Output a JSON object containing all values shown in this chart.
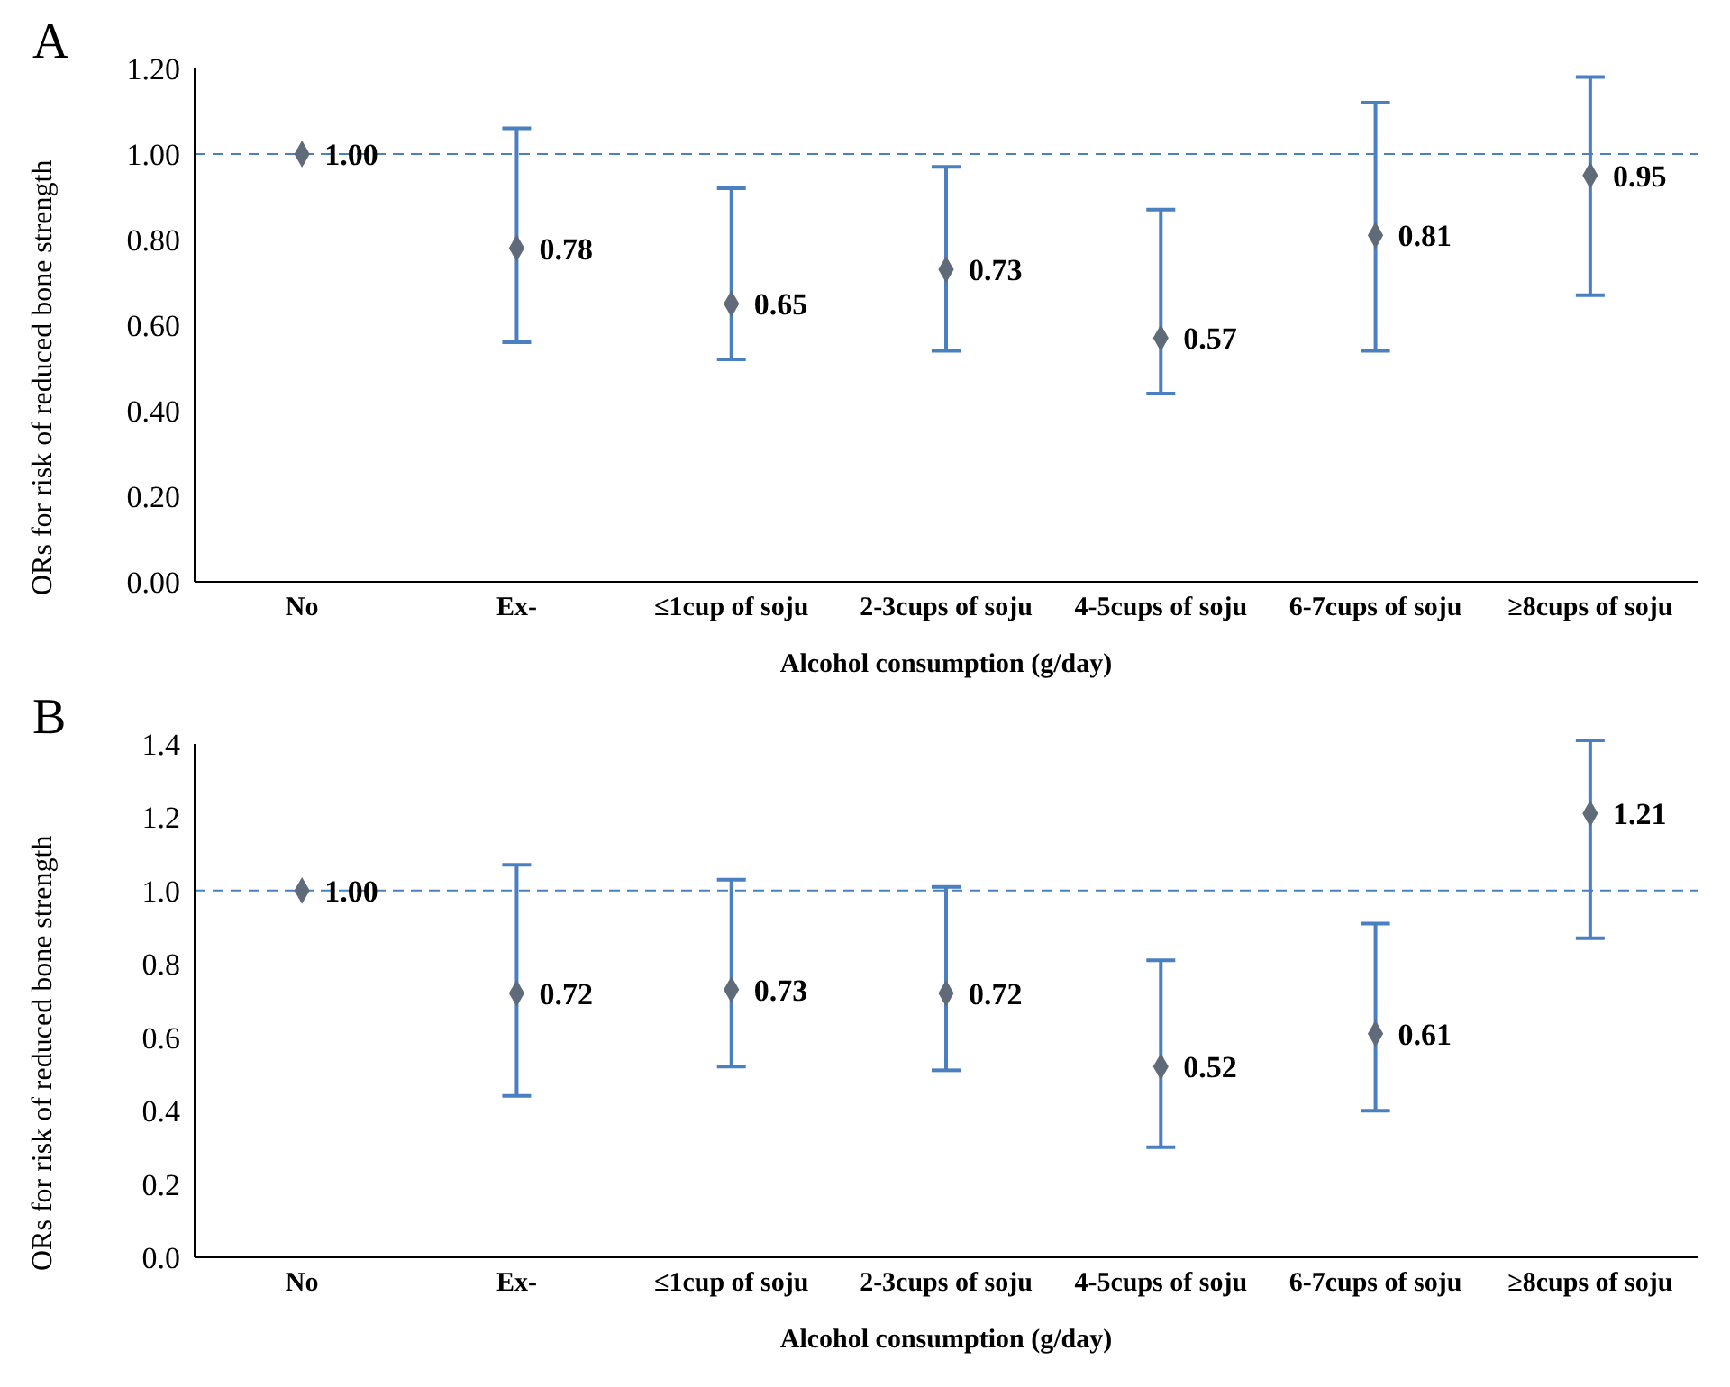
{
  "chart_data": [
    {
      "type": "scatter",
      "title": "A",
      "xlabel": "Alcohol consumption (g/day)",
      "ylabel": "ORs for risk of reduced bone strength",
      "categories": [
        "No",
        "Ex-",
        "≤1cup of soju",
        "2-3cups of soju",
        "4-5cups of soju",
        "6-7cups of soju",
        "≥8cups of soju"
      ],
      "series": [
        {
          "color": "#5f6b78",
          "values": [
            1.0,
            0.78,
            0.65,
            0.73,
            0.57,
            0.81,
            0.95
          ],
          "errors": [
            null,
            [
              0.56,
              1.06
            ],
            [
              0.52,
              0.92
            ],
            [
              0.54,
              0.97
            ],
            [
              0.44,
              0.87
            ],
            [
              0.54,
              1.12
            ],
            [
              0.67,
              1.18
            ]
          ],
          "value_labels": [
            "1.00",
            "0.78",
            "0.65",
            "0.73",
            "0.57",
            "0.81",
            "0.95"
          ]
        }
      ],
      "ylim": [
        0,
        1.2
      ],
      "yticks": [
        {
          "value": 0,
          "label": "0.00"
        },
        {
          "value": 0.2,
          "label": "0.20"
        },
        {
          "value": 0.4,
          "label": "0.40"
        },
        {
          "value": 0.6,
          "label": "0.60"
        },
        {
          "value": 0.8,
          "label": "0.80"
        },
        {
          "value": 1.0,
          "label": "1.00"
        },
        {
          "value": 1.2,
          "label": "1.20"
        }
      ],
      "ref_lines": [
        {
          "axis": "y",
          "value": 1.0,
          "color": "#4a7fc1",
          "line_style": "dashed"
        }
      ],
      "marker": "diamond",
      "grid": false
    },
    {
      "type": "scatter",
      "title": "B",
      "xlabel": "Alcohol consumption (g/day)",
      "ylabel": "ORs for risk of reduced bone strength",
      "categories": [
        "No",
        "Ex-",
        "≤1cup of soju",
        "2-3cups of soju",
        "4-5cups of soju",
        "6-7cups of soju",
        "≥8cups of soju"
      ],
      "series": [
        {
          "color": "#5f6b78",
          "values": [
            1.0,
            0.72,
            0.73,
            0.72,
            0.52,
            0.61,
            1.21
          ],
          "errors": [
            null,
            [
              0.44,
              1.07
            ],
            [
              0.52,
              1.03
            ],
            [
              0.51,
              1.01
            ],
            [
              0.3,
              0.81
            ],
            [
              0.4,
              0.91
            ],
            [
              0.87,
              1.41
            ]
          ],
          "value_labels": [
            "1.00",
            "0.72",
            "0.73",
            "0.72",
            "0.52",
            "0.61",
            "1.21"
          ]
        }
      ],
      "ylim": [
        0,
        1.4
      ],
      "yticks": [
        {
          "value": 0,
          "label": "0.0"
        },
        {
          "value": 0.2,
          "label": "0.2"
        },
        {
          "value": 0.4,
          "label": "0.4"
        },
        {
          "value": 0.6,
          "label": "0.6"
        },
        {
          "value": 0.8,
          "label": "0.8"
        },
        {
          "value": 1.0,
          "label": "1.0"
        },
        {
          "value": 1.2,
          "label": "1.2"
        },
        {
          "value": 1.4,
          "label": "1.4"
        }
      ],
      "ref_lines": [
        {
          "axis": "y",
          "value": 1.0,
          "color": "#4a7fc1",
          "line_style": "dashed"
        }
      ],
      "marker": "diamond",
      "grid": false
    }
  ]
}
